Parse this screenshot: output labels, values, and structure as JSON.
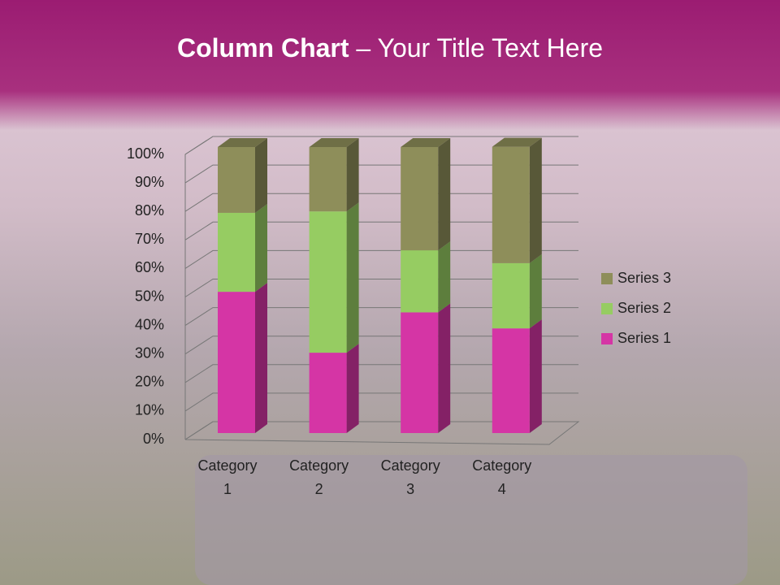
{
  "chart_data": {
    "type": "bar",
    "stacked": "percent",
    "title": [
      "Column Chart",
      "– Your Title Text Here"
    ],
    "categories": [
      "Category 1",
      "Category 2",
      "Category 3",
      "Category 4"
    ],
    "series": [
      {
        "name": "Series 1",
        "color": "#d535a5",
        "values": [
          49.4,
          28.1,
          42.2,
          36.6
        ]
      },
      {
        "name": "Series 2",
        "color": "#96cc62",
        "values": [
          27.6,
          49.4,
          21.7,
          22.8
        ]
      },
      {
        "name": "Series 3",
        "color": "#8e8e5a",
        "values": [
          23.0,
          22.5,
          36.1,
          40.7
        ]
      }
    ],
    "ylim": [
      0,
      100
    ],
    "yticks": [
      {
        "value": 0,
        "label": "0%"
      },
      {
        "value": 10,
        "label": "10%"
      },
      {
        "value": 20,
        "label": "20%"
      },
      {
        "value": 30,
        "label": "30%"
      },
      {
        "value": 40,
        "label": "40%"
      },
      {
        "value": 50,
        "label": "50%"
      },
      {
        "value": 60,
        "label": "60%"
      },
      {
        "value": 70,
        "label": "70%"
      },
      {
        "value": 80,
        "label": "80%"
      },
      {
        "value": 90,
        "label": "90%"
      },
      {
        "value": 100,
        "label": "100%"
      }
    ],
    "grid": true,
    "legend": "right"
  }
}
